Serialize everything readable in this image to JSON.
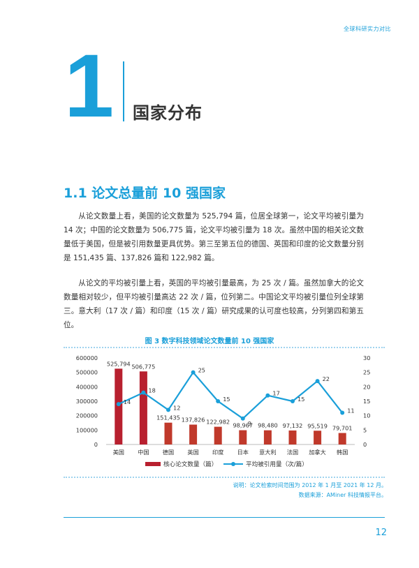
{
  "header": {
    "running_title": "全球科研实力对比"
  },
  "chapter": {
    "number": "1",
    "title": "国家分布"
  },
  "section": {
    "title": "1.1 论文总量前 10 强国家"
  },
  "paragraphs": [
    "从论文数量上看，美国的论文数量为 525,794 篇，位居全球第一，论文平均被引量为 14 次；中国的论文数量为 506,775 篇，论文平均被引量为 18 次。虽然中国的相关论文数量低于美国，但是被引用数量更具优势。第三至第五位的德国、英国和印度的论文数量分别是 151,435 篇、137,826 篇和 122,982 篇。",
    "从论文的平均被引量上看，英国的平均被引量最高，为 25 次 / 篇。虽然加拿大的论文数量相对较少，但平均被引量高达 22 次 / 篇，位列第二。中国论文平均被引量位列全球第三。意大利（17 次 / 篇）和印度（15 次 / 篇）研究成果的认可度也较高，分列第四和第五位。"
  ],
  "figure": {
    "title": "图 3 数字科技领域论文数量前 10 强国家",
    "note_line1": "说明：论文检索时间范围为 2012 年 1 月至 2021 年 12 月。",
    "note_line2": "数据来源：AMiner 科技情报平台。"
  },
  "chart_data": {
    "type": "bar+line",
    "categories": [
      "美国",
      "中国",
      "德国",
      "英国",
      "印度",
      "日本",
      "意大利",
      "法国",
      "加拿大",
      "韩国"
    ],
    "bar_series": {
      "name": "核心论文数量（篇）",
      "values": [
        525794,
        506775,
        151435,
        137826,
        122982,
        98967,
        98480,
        97132,
        95519,
        79701
      ],
      "value_labels": [
        "525,794",
        "506,775",
        "151,435",
        "137,826",
        "122,982",
        "98,967",
        "98,480",
        "97,132",
        "95,519",
        "79,701"
      ],
      "highlight_color": "#b8202f",
      "color": "#c0392b"
    },
    "line_series": {
      "name": "平均被引用量（次/篇）",
      "values": [
        14,
        18,
        12,
        25,
        15,
        9,
        17,
        15,
        22,
        11
      ],
      "color": "#1a9fd9"
    },
    "y_left": {
      "ticks": [
        "0",
        "100000",
        "200000",
        "300000",
        "400000",
        "500000",
        "600000"
      ],
      "ylim": [
        0,
        600000
      ]
    },
    "y_right": {
      "ticks": [
        "0",
        "5",
        "10",
        "15",
        "20",
        "25",
        "30"
      ],
      "ylim": [
        0,
        30
      ]
    },
    "legend_position": "bottom",
    "grid": false
  },
  "page": {
    "number": "12"
  }
}
